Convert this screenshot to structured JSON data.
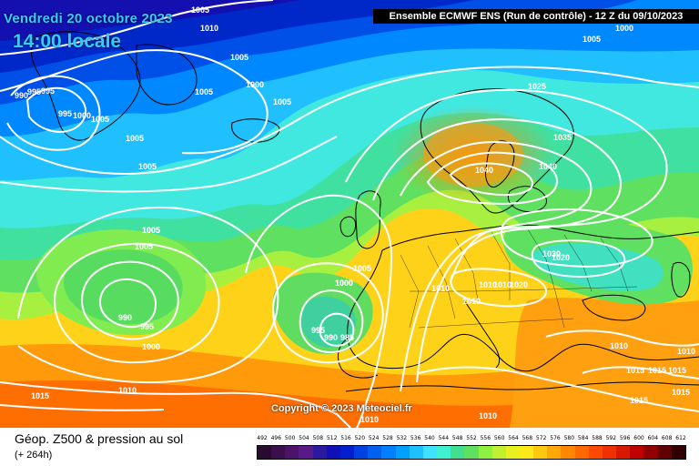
{
  "header": {
    "date_line": "Vendredi 20 octobre 2023",
    "time_line": "14:00 locale",
    "model_info": "Ensemble ECMWF ENS  (Run de contrôle)  -  12 Z du 09/10/2023"
  },
  "map": {
    "copyright": "Copyright © 2023 Meteociel.fr",
    "isobar_labels": [
      "1010",
      "1005",
      "995",
      "990",
      "995",
      "1005",
      "1000",
      "1005",
      "1005",
      "1005",
      "1000",
      "1005",
      "1005",
      "1000",
      "1005",
      "1000",
      "1005",
      "1005",
      "995",
      "1005",
      "1025",
      "1035",
      "1040",
      "1040",
      "1030",
      "1020",
      "1010",
      "1010",
      "1010",
      "1010",
      "1020",
      "1005",
      "1000",
      "995",
      "990",
      "985",
      "995",
      "990",
      "1000",
      "1010",
      "1010",
      "1015",
      "1010",
      "1015",
      "1015",
      "1015",
      "1010",
      "1015",
      "1015",
      "1010"
    ],
    "layers": [
      "geopotential-500hPa-shading",
      "sea-level-pressure-isobars",
      "coastlines",
      "country-borders"
    ],
    "colors": {
      "isobar": "#ffffff",
      "coastline": "#000000",
      "low_core": "#0000a0",
      "high_core": "#ff6a00"
    }
  },
  "footer": {
    "title": "Géop. Z500 & pression au sol",
    "subtitle": "(+ 264h)"
  },
  "scale": {
    "labels": [
      "492",
      "496",
      "500",
      "504",
      "508",
      "512",
      "516",
      "520",
      "524",
      "528",
      "532",
      "536",
      "540",
      "544",
      "548",
      "552",
      "556",
      "560",
      "564",
      "568",
      "572",
      "576",
      "580",
      "584",
      "588",
      "592",
      "596",
      "600",
      "604",
      "608",
      "612"
    ],
    "colors": [
      "#2a0a2e",
      "#3b0f4b",
      "#4b1468",
      "#5a1a85",
      "#2b1aa0",
      "#1010b8",
      "#0020d0",
      "#0040e0",
      "#0060f0",
      "#0080ff",
      "#00a0ff",
      "#20c0ff",
      "#40e0ff",
      "#40f0d0",
      "#40e090",
      "#60e060",
      "#90f040",
      "#c0f030",
      "#e8f020",
      "#ffe818",
      "#ffc810",
      "#ffa808",
      "#ff8800",
      "#ff6800",
      "#ff4800",
      "#f03000",
      "#d81800",
      "#c00000",
      "#900000",
      "#600000",
      "#300000"
    ]
  }
}
